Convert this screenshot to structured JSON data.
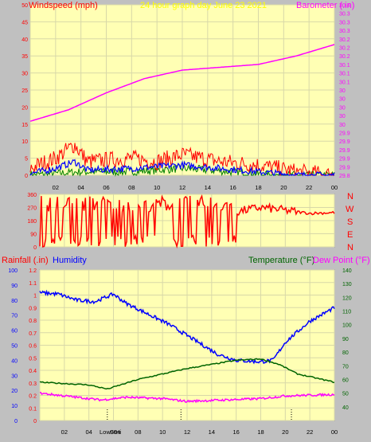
{
  "chart_data": [
    {
      "type": "line",
      "subtitle": "24 hour graph day   June 23 2021",
      "left_axis_label": "Windspeed (mph)",
      "right_axis_label": "Barometer (.in)",
      "x_ticks": [
        "02",
        "04",
        "06",
        "08",
        "10",
        "12",
        "14",
        "16",
        "18",
        "20",
        "22",
        "00"
      ],
      "left_axis": {
        "range": [
          0,
          50
        ],
        "ticks": [
          "0",
          "5",
          "10",
          "15",
          "20",
          "25",
          "30",
          "35",
          "40",
          "45",
          "50"
        ]
      },
      "right_axis": {
        "range": [
          29.8,
          30.4
        ],
        "ticks": [
          "29.8",
          "29.9",
          "29.9",
          "29.9",
          "29.9",
          "29.9",
          "30",
          "30",
          "30",
          "30",
          "30",
          "30.1",
          "30.1",
          "30.1",
          "30.2",
          "30.2",
          "30.2",
          "30.3",
          "30.3",
          "30.3",
          "30.4"
        ]
      },
      "series": [
        {
          "color": "#ff00ff",
          "points": [
            [
              0,
              29.99
            ],
            [
              3,
              30.03
            ],
            [
              6,
              30.09
            ],
            [
              9,
              30.14
            ],
            [
              12,
              30.17
            ],
            [
              15,
              30.18
            ],
            [
              18,
              30.19
            ],
            [
              21,
              30.22
            ],
            [
              24,
              30.26
            ]
          ]
        },
        {
          "color": "#ff0000",
          "points": [
            [
              0,
              2
            ],
            [
              2,
              5
            ],
            [
              3.5,
              9
            ],
            [
              4.5,
              4
            ],
            [
              8,
              5
            ],
            [
              10,
              4
            ],
            [
              12,
              6
            ],
            [
              15,
              4
            ],
            [
              18,
              3
            ],
            [
              21,
              1
            ],
            [
              24,
              0
            ]
          ]
        },
        {
          "color": "#0000ff",
          "points": [
            [
              0,
              0.5
            ],
            [
              2,
              2
            ],
            [
              3.5,
              4
            ],
            [
              4.5,
              1.5
            ],
            [
              8,
              2
            ],
            [
              12,
              3
            ],
            [
              15,
              2
            ],
            [
              18,
              1
            ],
            [
              21,
              0
            ],
            [
              24,
              0
            ]
          ]
        },
        {
          "color": "#008000",
          "points": [
            [
              0,
              0
            ],
            [
              4,
              1
            ],
            [
              8,
              1
            ],
            [
              12,
              2
            ],
            [
              16,
              1
            ],
            [
              19,
              0
            ],
            [
              24,
              0
            ]
          ]
        }
      ]
    },
    {
      "type": "line",
      "right_labels": [
        "N",
        "W",
        "S",
        "E",
        "N"
      ],
      "left_axis": {
        "range": [
          0,
          360
        ],
        "ticks": [
          "0",
          "90",
          "180",
          "270",
          "360"
        ]
      },
      "series": [
        {
          "color": "#ff0000",
          "points": [
            [
              0,
              270
            ],
            [
              3,
              210
            ],
            [
              7,
              240
            ],
            [
              11,
              160
            ],
            [
              14,
              250
            ],
            [
              16,
              240
            ],
            [
              18,
              270
            ],
            [
              20,
              250
            ],
            [
              22,
              230
            ],
            [
              24,
              235
            ]
          ]
        }
      ]
    },
    {
      "type": "line",
      "left_axis_labels": [
        "Rainfall (.in)",
        "Humidity"
      ],
      "right_axis_labels": [
        "Temperature (°F)",
        "Dew Point (°F)"
      ],
      "x_ticks": [
        "02",
        "04",
        "06",
        "08",
        "10",
        "12",
        "14",
        "16",
        "18",
        "20",
        "22",
        "00"
      ],
      "humidity_axis": {
        "range": [
          0,
          100
        ],
        "ticks": [
          "0",
          "10",
          "20",
          "30",
          "40",
          "50",
          "60",
          "70",
          "80",
          "90",
          "100"
        ]
      },
      "rain_axis": {
        "range": [
          0,
          1.2
        ],
        "ticks": [
          "0",
          "0.1",
          "0.2",
          "0.3",
          "0.4",
          "0.5",
          "0.6",
          "0.7",
          "0.8",
          "0.9",
          "1",
          "1.1",
          "1.2"
        ]
      },
      "temp_axis": {
        "range": [
          30,
          140
        ],
        "ticks": [
          "40",
          "50",
          "60",
          "70",
          "80",
          "90",
          "100",
          "110",
          "120",
          "130",
          "140"
        ]
      },
      "markers": [
        "Low",
        "Sun",
        "Hi"
      ],
      "series": [
        {
          "color": "#0000ff",
          "points": [
            [
              0,
              85
            ],
            [
              1.5,
              84
            ],
            [
              3,
              80
            ],
            [
              4.5,
              79
            ],
            [
              6,
              84
            ],
            [
              7,
              78
            ],
            [
              8.5,
              72
            ],
            [
              10.5,
              64
            ],
            [
              12.5,
              54
            ],
            [
              14.5,
              44
            ],
            [
              16,
              40
            ],
            [
              18,
              39
            ],
            [
              19,
              40
            ],
            [
              20,
              52
            ],
            [
              22,
              66
            ],
            [
              24,
              75
            ]
          ]
        },
        {
          "color": "#006400",
          "points": [
            [
              0,
              58
            ],
            [
              2,
              57
            ],
            [
              4,
              56
            ],
            [
              5.5,
              53
            ],
            [
              8,
              60
            ],
            [
              12,
              68
            ],
            [
              16,
              74
            ],
            [
              18,
              75
            ],
            [
              19.5,
              71
            ],
            [
              21,
              64
            ],
            [
              24,
              58
            ]
          ]
        },
        {
          "color": "#ff00ff",
          "points": [
            [
              0,
              50
            ],
            [
              3,
              47
            ],
            [
              5,
              45
            ],
            [
              7,
              47
            ],
            [
              10,
              46
            ],
            [
              12,
              44
            ],
            [
              15,
              45
            ],
            [
              18,
              46
            ],
            [
              20,
              48
            ],
            [
              24,
              49
            ]
          ]
        }
      ]
    }
  ]
}
